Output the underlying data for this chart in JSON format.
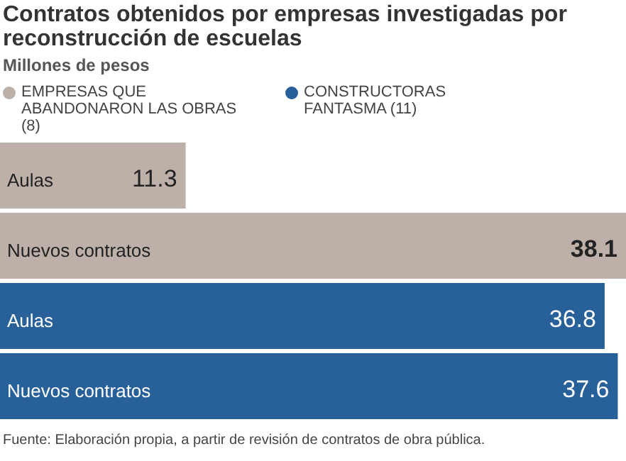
{
  "chart_data": {
    "type": "bar",
    "orientation": "horizontal",
    "title": "Contratos obtenidos por empresas investigadas por reconstrucción de escuelas",
    "subtitle": "Millones de pesos",
    "categories": [
      "Aulas",
      "Nuevos contratos",
      "Aulas",
      "Nuevos contratos"
    ],
    "series": [
      {
        "name": "EMPRESAS QUE ABANDONARON LAS OBRAS (8)",
        "color": "#bcb0a9",
        "values": [
          11.3,
          38.1,
          null,
          null
        ]
      },
      {
        "name": "CONSTRUCTORAS FANTASMA (11)",
        "color": "#28609a",
        "values": [
          null,
          null,
          36.8,
          37.6
        ]
      }
    ],
    "data_labels": true,
    "legend": "top",
    "annotations": [
      "Fuente: Elaboración propia, a partir de revisión de contratos de obra pública."
    ]
  }
}
